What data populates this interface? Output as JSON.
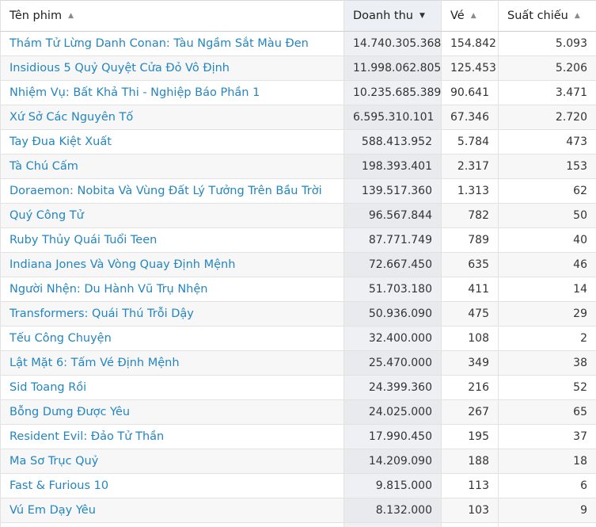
{
  "table": {
    "columns": [
      {
        "key": "name",
        "label": "Tên phim",
        "sort": "▲"
      },
      {
        "key": "revenue",
        "label": "Doanh thu",
        "sort": "▼"
      },
      {
        "key": "tickets",
        "label": "Vé",
        "sort": "▲"
      },
      {
        "key": "showings",
        "label": "Suất chiếu",
        "sort": "▲"
      }
    ],
    "sorted_column": "revenue",
    "rows": [
      {
        "name": "Thám Tử Lừng Danh Conan: Tàu Ngầm Sắt Màu Đen",
        "revenue": "14.740.305.368",
        "tickets": "154.842",
        "showings": "5.093"
      },
      {
        "name": "Insidious 5 Quỷ Quyệt Cửa Đỏ Vô Định",
        "revenue": "11.998.062.805",
        "tickets": "125.453",
        "showings": "5.206"
      },
      {
        "name": "Nhiệm Vụ: Bất Khả Thi - Nghiệp Báo Phần 1",
        "revenue": "10.235.685.389",
        "tickets": "90.641",
        "showings": "3.471"
      },
      {
        "name": "Xứ Sở Các Nguyên Tố",
        "revenue": "6.595.310.101",
        "tickets": "67.346",
        "showings": "2.720"
      },
      {
        "name": "Tay Đua Kiệt Xuất",
        "revenue": "588.413.952",
        "tickets": "5.784",
        "showings": "473"
      },
      {
        "name": "Tà Chú Cấm",
        "revenue": "198.393.401",
        "tickets": "2.317",
        "showings": "153"
      },
      {
        "name": "Doraemon: Nobita Và Vùng Đất Lý Tưởng Trên Bầu Trời",
        "revenue": "139.517.360",
        "tickets": "1.313",
        "showings": "62"
      },
      {
        "name": "Quý Công Tử",
        "revenue": "96.567.844",
        "tickets": "782",
        "showings": "50"
      },
      {
        "name": "Ruby Thủy Quái Tuổi Teen",
        "revenue": "87.771.749",
        "tickets": "789",
        "showings": "40"
      },
      {
        "name": "Indiana Jones Và Vòng Quay Định Mệnh",
        "revenue": "72.667.450",
        "tickets": "635",
        "showings": "46"
      },
      {
        "name": "Người Nhện: Du Hành Vũ Trụ Nhện",
        "revenue": "51.703.180",
        "tickets": "411",
        "showings": "14"
      },
      {
        "name": "Transformers: Quái Thú Trỗi Dậy",
        "revenue": "50.936.090",
        "tickets": "475",
        "showings": "29"
      },
      {
        "name": "Tếu Công Chuyện",
        "revenue": "32.400.000",
        "tickets": "108",
        "showings": "2"
      },
      {
        "name": "Lật Mặt 6: Tấm Vé Định Mệnh",
        "revenue": "25.470.000",
        "tickets": "349",
        "showings": "38"
      },
      {
        "name": "Sid Toang Rồi",
        "revenue": "24.399.360",
        "tickets": "216",
        "showings": "52"
      },
      {
        "name": "Bỗng Dưng Được Yêu",
        "revenue": "24.025.000",
        "tickets": "267",
        "showings": "65"
      },
      {
        "name": "Resident Evil: Đảo Tử Thần",
        "revenue": "17.990.450",
        "tickets": "195",
        "showings": "37"
      },
      {
        "name": "Ma Sơ Trục Quỷ",
        "revenue": "14.209.090",
        "tickets": "188",
        "showings": "18"
      },
      {
        "name": "Fast & Furious 10",
        "revenue": "9.815.000",
        "tickets": "113",
        "showings": "6"
      },
      {
        "name": "Vú Em Dạy Yêu",
        "revenue": "8.132.000",
        "tickets": "103",
        "showings": "9"
      },
      {
        "name": "",
        "revenue": "",
        "tickets": "",
        "showings": ""
      }
    ]
  },
  "colors": {
    "link": "#2386c1",
    "sorted_header_bg": "#eceff4",
    "sorted_column_bg": "#eef0f3"
  }
}
